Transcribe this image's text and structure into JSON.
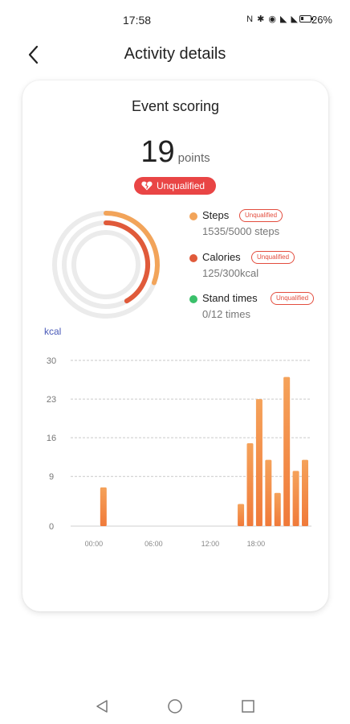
{
  "status_bar": {
    "time": "17:58",
    "icons": "N ✱ ◉ ◣ ◣",
    "battery_percent": "26%"
  },
  "header": {
    "title": "Activity details",
    "back_icon": "chevron-left-icon"
  },
  "card": {
    "title": "Event scoring",
    "score_value": "19",
    "score_unit": "points",
    "status_badge": "Unqualified",
    "status_icon": "broken-heart-icon"
  },
  "rings": {
    "steps_fraction": 0.307,
    "calories_fraction": 0.417,
    "stand_fraction": 0,
    "colors": {
      "steps": "#f2a45a",
      "calories": "#e05a3a",
      "stand": "#3ac06a",
      "track": "#ebebeb"
    }
  },
  "legend": [
    {
      "label": "Steps",
      "value": "1535/5000 steps",
      "badge": "Unqualified",
      "color": "#f2a45a"
    },
    {
      "label": "Calories",
      "value": "125/300kcal",
      "badge": "Unqualified",
      "color": "#e05a3a"
    },
    {
      "label": "Stand times",
      "value": "0/12 times",
      "badge": "Unqualified",
      "color": "#3ac06a"
    }
  ],
  "chart_data": {
    "type": "bar",
    "ylabel": "kcal",
    "yticks": [
      30,
      23,
      16,
      9,
      0
    ],
    "ylim": [
      0,
      30
    ],
    "xticks": [
      "00:00",
      "06:00",
      "12:00",
      "18:00"
    ],
    "xlim": [
      0,
      24
    ],
    "grid": true,
    "color": "#f07a3a",
    "bars": [
      {
        "x": 2,
        "y": 7
      },
      {
        "x": 17,
        "y": 4
      },
      {
        "x": 18,
        "y": 15
      },
      {
        "x": 19,
        "y": 23
      },
      {
        "x": 20,
        "y": 12
      },
      {
        "x": 21,
        "y": 6
      },
      {
        "x": 22,
        "y": 27
      },
      {
        "x": 23,
        "y": 10
      },
      {
        "x": 24,
        "y": 12
      }
    ]
  },
  "nav_bar": {
    "back_icon": "triangle-back-icon",
    "home_icon": "circle-home-icon",
    "recents_icon": "square-recents-icon"
  }
}
